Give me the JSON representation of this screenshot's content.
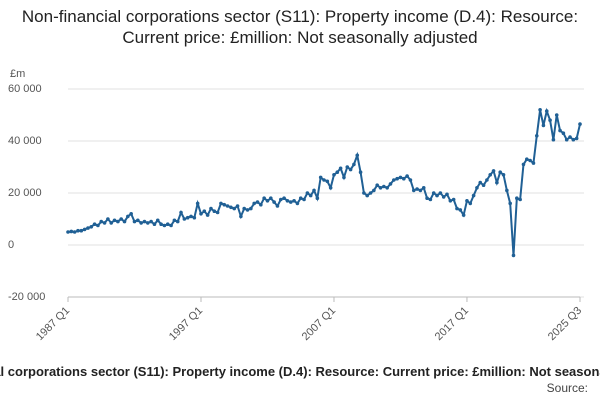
{
  "chart_data": {
    "type": "line",
    "title": "Non-financial corporations sector (S11): Property income (D.4): Resource: Current price: £million: Not seasonally adjusted",
    "y_unit": "£m",
    "source": "Source:",
    "color": "#206095",
    "grid": true,
    "ylim": [
      -20000,
      60000
    ],
    "yticks": [
      {
        "value": -20000,
        "label": "-20 000"
      },
      0,
      {
        "value": 20000,
        "label": "20 000"
      },
      {
        "value": 40000,
        "label": "40 000"
      },
      {
        "value": 60000,
        "label": "60 000"
      }
    ],
    "categories": [
      "1987 Q1",
      null,
      null,
      null,
      null,
      null,
      null,
      null,
      null,
      null,
      null,
      null,
      null,
      null,
      null,
      null,
      null,
      null,
      null,
      null,
      null,
      null,
      null,
      null,
      null,
      null,
      null,
      null,
      null,
      null,
      null,
      null,
      null,
      null,
      null,
      null,
      null,
      null,
      null,
      null,
      "1997 Q1",
      null,
      null,
      null,
      null,
      null,
      null,
      null,
      null,
      null,
      null,
      null,
      null,
      null,
      null,
      null,
      null,
      null,
      null,
      null,
      null,
      null,
      null,
      null,
      null,
      null,
      null,
      null,
      null,
      null,
      null,
      null,
      null,
      null,
      null,
      null,
      null,
      null,
      null,
      null,
      "2007 Q1",
      null,
      null,
      null,
      null,
      null,
      null,
      null,
      null,
      null,
      null,
      null,
      null,
      null,
      null,
      null,
      null,
      null,
      null,
      null,
      null,
      null,
      null,
      null,
      null,
      null,
      null,
      null,
      null,
      null,
      null,
      null,
      null,
      null,
      null,
      null,
      null,
      null,
      null,
      null,
      "2017 Q1",
      null,
      null,
      null,
      null,
      null,
      null,
      null,
      null,
      null,
      null,
      null,
      null,
      null,
      null,
      null,
      null,
      null,
      null,
      null,
      null,
      null,
      null,
      null,
      null,
      null,
      null,
      null,
      null,
      null,
      null,
      null,
      null,
      null,
      "2025 Q3"
    ],
    "values": [
      5000,
      5200,
      5000,
      5500,
      5500,
      6000,
      6500,
      7000,
      8000,
      7500,
      9000,
      8500,
      10000,
      8500,
      9500,
      9000,
      10000,
      9000,
      11000,
      12000,
      9000,
      9500,
      8500,
      9000,
      8500,
      9000,
      8000,
      9500,
      8000,
      7500,
      8000,
      7500,
      9500,
      9000,
      12500,
      10000,
      10500,
      11000,
      10500,
      16000,
      12000,
      13000,
      11500,
      14000,
      13000,
      12500,
      16000,
      15500,
      15000,
      14500,
      14000,
      15000,
      11000,
      14000,
      13500,
      14000,
      16000,
      16500,
      15500,
      18000,
      17000,
      18000,
      16500,
      15000,
      17500,
      18000,
      17000,
      16500,
      17000,
      16000,
      18000,
      17500,
      20000,
      19000,
      21000,
      18000,
      26000,
      25000,
      24500,
      22000,
      27000,
      28000,
      29500,
      26000,
      30000,
      29000,
      31000,
      34500,
      28000,
      20000,
      19000,
      20000,
      21000,
      23000,
      22000,
      22500,
      22000,
      23500,
      25000,
      25500,
      26000,
      25500,
      26500,
      25000,
      21000,
      21500,
      21000,
      22000,
      18000,
      17500,
      20000,
      19000,
      20000,
      18500,
      19500,
      17000,
      17500,
      14000,
      13500,
      11500,
      17000,
      16000,
      19000,
      22000,
      24000,
      23000,
      25000,
      27000,
      28500,
      24000,
      28000,
      27000,
      21000,
      16000,
      -4000,
      18000,
      17500,
      31000,
      33000,
      32500,
      31500,
      42000,
      52000,
      46000,
      51500,
      48000,
      40500,
      50000,
      44000,
      43000,
      40500,
      41500,
      40500,
      41000,
      46500
    ]
  }
}
